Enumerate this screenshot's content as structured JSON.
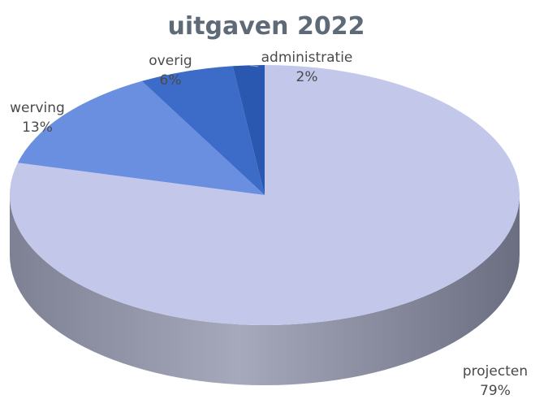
{
  "chart_data": {
    "type": "pie",
    "title": "uitgaven 2022",
    "categories": [
      "projecten",
      "werving",
      "overig",
      "administratie"
    ],
    "values": [
      79,
      13,
      6,
      2
    ],
    "value_labels": [
      "79%",
      "13%",
      "6%",
      "2%"
    ],
    "colors": [
      "#c3c8ea",
      "#6a8fe0",
      "#3c6cc8",
      "#2a58b0"
    ],
    "side_colors": [
      "#888c9e",
      "#4f6aa8",
      "#2d5294",
      "#1f4180"
    ],
    "legend": "none",
    "style": "3d"
  }
}
